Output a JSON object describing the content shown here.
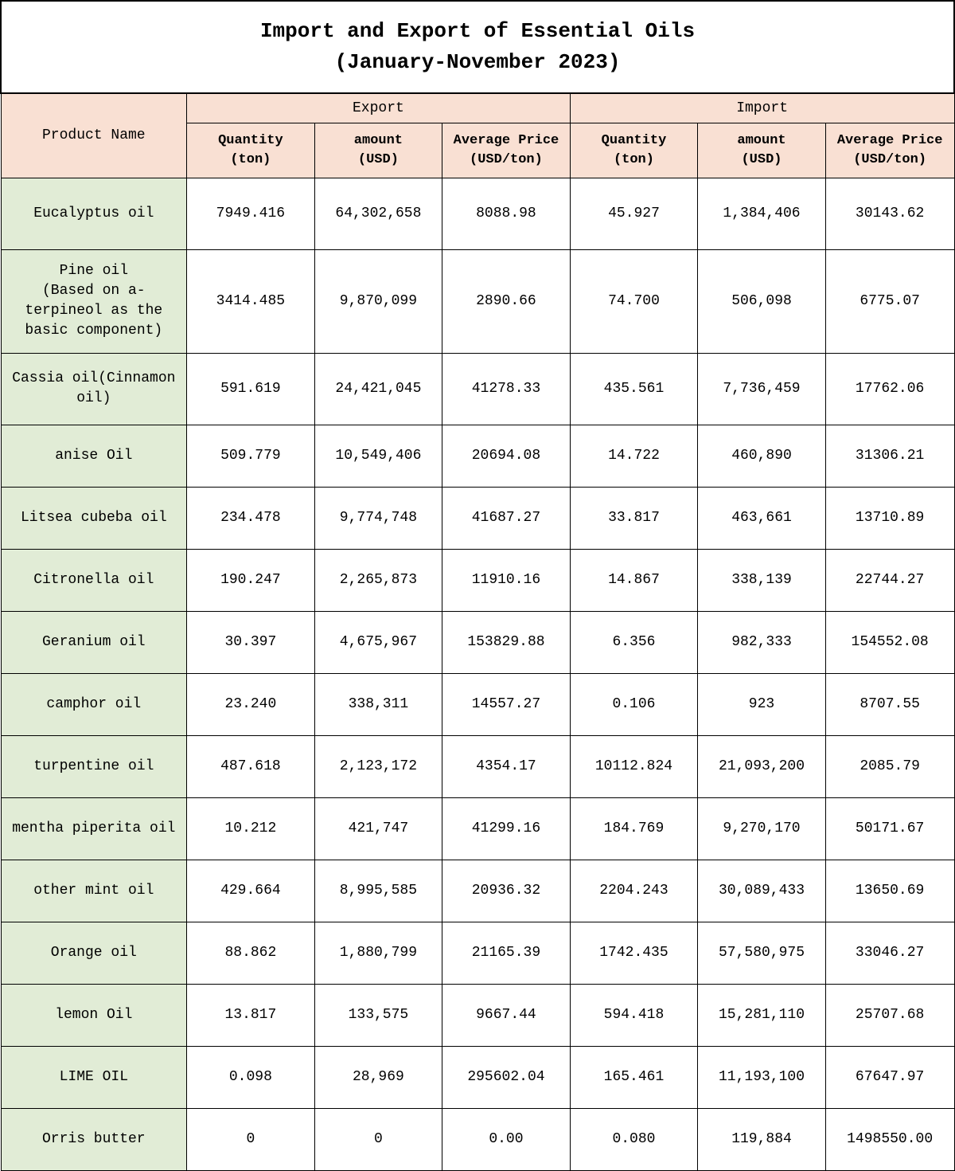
{
  "title_line1": "Import and Export of Essential Oils",
  "title_line2": "(January-November 2023)",
  "headers": {
    "product": "Product Name",
    "export": "Export",
    "import": "Import",
    "qty_l1": "Quantity",
    "qty_l2": "(ton)",
    "amt_l1": "amount",
    "amt_l2": "(USD)",
    "avg_l1": "Average Price",
    "avg_l2": "(USD/ton)"
  },
  "styling": {
    "type": "table",
    "header_bg_color": "#f9e0d3",
    "product_bg_color": "#e1ecd6",
    "data_bg_color": "#ffffff",
    "border_color": "#000000",
    "title_fontsize": 26,
    "cell_fontsize": 18,
    "font_family": "SimSun, Courier New, monospace",
    "columns": [
      "Product Name",
      "Export Quantity (ton)",
      "Export amount (USD)",
      "Export Average Price (USD/ton)",
      "Import Quantity (ton)",
      "Import amount (USD)",
      "Import Average Price (USD/ton)"
    ]
  },
  "rows": [
    {
      "name": "Eucalyptus oil",
      "eq": "7949.416",
      "ea": "64,302,658",
      "ep": "8088.98",
      "iq": "45.927",
      "ia": "1,384,406",
      "ip": "30143.62",
      "cls": "med"
    },
    {
      "name": "Pine oil\n(Based on a-terpineol as the basic component)",
      "eq": "3414.485",
      "ea": "9,870,099",
      "ep": "2890.66",
      "iq": "74.700",
      "ia": "506,098",
      "ip": "6775.07",
      "cls": "tall"
    },
    {
      "name": "Cassia oil(Cinnamon oil)",
      "eq": "591.619",
      "ea": "24,421,045",
      "ep": "41278.33",
      "iq": "435.561",
      "ia": "7,736,459",
      "ip": "17762.06",
      "cls": "med"
    },
    {
      "name": "anise Oil",
      "eq": "509.779",
      "ea": "10,549,406",
      "ep": "20694.08",
      "iq": "14.722",
      "ia": "460,890",
      "ip": "31306.21",
      "cls": ""
    },
    {
      "name": "Litsea cubeba oil",
      "eq": "234.478",
      "ea": "9,774,748",
      "ep": "41687.27",
      "iq": "33.817",
      "ia": "463,661",
      "ip": "13710.89",
      "cls": ""
    },
    {
      "name": "Citronella oil",
      "eq": "190.247",
      "ea": "2,265,873",
      "ep": "11910.16",
      "iq": "14.867",
      "ia": "338,139",
      "ip": "22744.27",
      "cls": ""
    },
    {
      "name": "Geranium oil",
      "eq": "30.397",
      "ea": "4,675,967",
      "ep": "153829.88",
      "iq": "6.356",
      "ia": "982,333",
      "ip": "154552.08",
      "cls": ""
    },
    {
      "name": "camphor oil",
      "eq": "23.240",
      "ea": "338,311",
      "ep": "14557.27",
      "iq": "0.106",
      "ia": "923",
      "ip": "8707.55",
      "cls": ""
    },
    {
      "name": "turpentine oil",
      "eq": "487.618",
      "ea": "2,123,172",
      "ep": "4354.17",
      "iq": "10112.824",
      "ia": "21,093,200",
      "ip": "2085.79",
      "cls": ""
    },
    {
      "name": "mentha piperita oil",
      "eq": "10.212",
      "ea": "421,747",
      "ep": "41299.16",
      "iq": "184.769",
      "ia": "9,270,170",
      "ip": "50171.67",
      "cls": ""
    },
    {
      "name": "other mint oil",
      "eq": "429.664",
      "ea": "8,995,585",
      "ep": "20936.32",
      "iq": "2204.243",
      "ia": "30,089,433",
      "ip": "13650.69",
      "cls": ""
    },
    {
      "name": "Orange oil",
      "eq": "88.862",
      "ea": "1,880,799",
      "ep": "21165.39",
      "iq": "1742.435",
      "ia": "57,580,975",
      "ip": "33046.27",
      "cls": ""
    },
    {
      "name": "lemon Oil",
      "eq": "13.817",
      "ea": "133,575",
      "ep": "9667.44",
      "iq": "594.418",
      "ia": "15,281,110",
      "ip": "25707.68",
      "cls": ""
    },
    {
      "name": "LIME OIL",
      "eq": "0.098",
      "ea": "28,969",
      "ep": "295602.04",
      "iq": "165.461",
      "ia": "11,193,100",
      "ip": "67647.97",
      "cls": ""
    },
    {
      "name": "Orris butter",
      "eq": "0",
      "ea": "0",
      "ep": "0.00",
      "iq": "0.080",
      "ia": "119,884",
      "ip": "1498550.00",
      "cls": ""
    }
  ]
}
